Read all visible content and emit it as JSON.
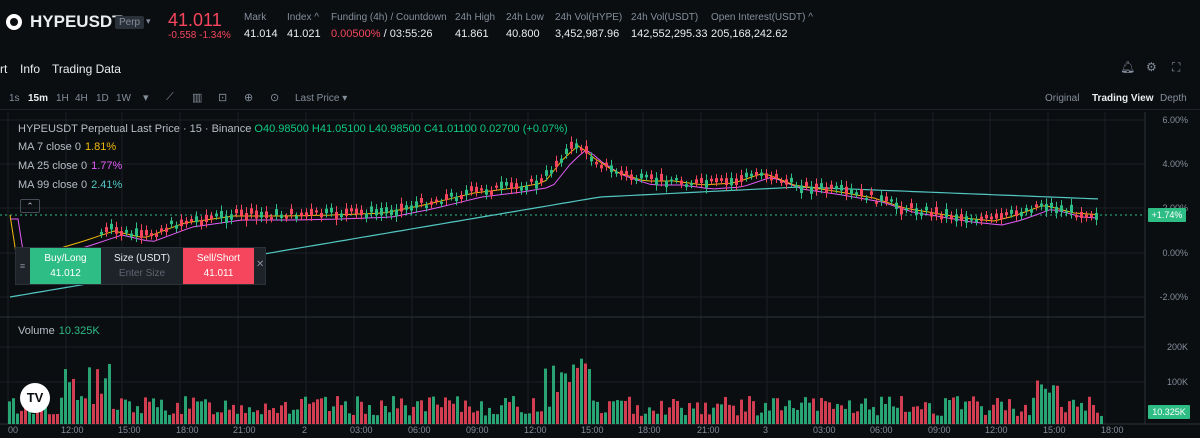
{
  "header": {
    "symbol": "HYPEUSDT",
    "badge": "Perp",
    "last_price": "41.011",
    "change": "-0.558 -1.34%",
    "stats": [
      {
        "label": "Mark",
        "value": "41.014"
      },
      {
        "label": "Index ^",
        "value": "41.021"
      },
      {
        "label": "Funding (4h) / Countdown",
        "value_red": "0.00500%",
        "value": "/ 03:55:26"
      },
      {
        "label": "24h High",
        "value": "41.861"
      },
      {
        "label": "24h Low",
        "value": "40.800"
      },
      {
        "label": "24h Vol(HYPE)",
        "value": "3,452,987.96"
      },
      {
        "label": "24h Vol(USDT)",
        "value": "142,552,295.33"
      },
      {
        "label": "Open Interest(USDT) ^",
        "value": "205,168,242.62"
      }
    ]
  },
  "tabs": {
    "chart": "rt",
    "info": "Info",
    "trading_data": "Trading Data"
  },
  "toolbar": {
    "timeframes": [
      "1s",
      "15m",
      "1H",
      "4H",
      "1D",
      "1W"
    ],
    "active_timeframe": "15m",
    "price_type": "Last Price",
    "views": [
      "Original",
      "Trading View",
      "Depth"
    ],
    "active_view": "Trading View"
  },
  "legend": {
    "title": "HYPEUSDT Perpetual Last Price · 15 · Binance",
    "ohlc": "O40.98500 H41.05100 L40.98500 C41.01100 0.02700 (+0.07%)",
    "ma7": {
      "label": "MA 7 close 0",
      "value": "1.81%",
      "color": "#f0b90b"
    },
    "ma25": {
      "label": "MA 25 close 0",
      "value": "1.77%",
      "color": "#e35cf7"
    },
    "ma99": {
      "label": "MA 99 close 0",
      "value": "2.41%",
      "color": "#52c7c2"
    }
  },
  "trade_panel": {
    "buy_label": "Buy/Long",
    "buy_price": "41.012",
    "size_label": "Size (USDT)",
    "size_placeholder": "Enter Size",
    "sell_label": "Sell/Short",
    "sell_price": "41.011"
  },
  "price_axis": [
    "6.00%",
    "4.00%",
    "2.00%",
    "0.00%",
    "-2.00%"
  ],
  "current_tag": "+1.74%",
  "volume": {
    "label": "Volume",
    "value": "10.325K",
    "axis": [
      "200K",
      "100K"
    ],
    "tag": "10.325K"
  },
  "time_axis": [
    "00",
    "12:00",
    "15:00",
    "18:00",
    "21:00",
    "2",
    "03:00",
    "06:00",
    "09:00",
    "12:00",
    "15:00",
    "18:00",
    "21:00",
    "3",
    "03:00",
    "06:00",
    "09:00",
    "12:00",
    "15:00",
    "18:00"
  ],
  "colors": {
    "up": "#2ebd85",
    "down": "#f6465d",
    "bg": "#0b0e11"
  }
}
